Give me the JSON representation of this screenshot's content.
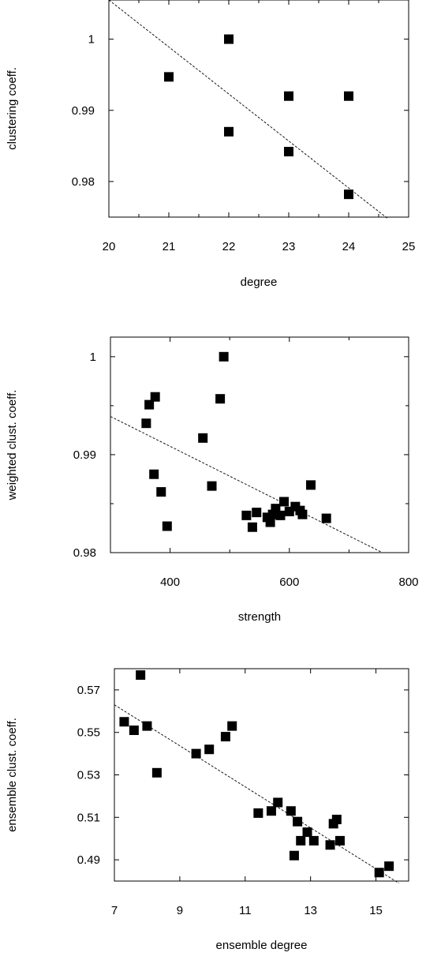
{
  "chart_data": [
    {
      "type": "scatter",
      "title": "",
      "xlabel": "degree",
      "ylabel": "clustering coeff.",
      "xlim": [
        20,
        25
      ],
      "ylim": [
        0.975,
        1.0055
      ],
      "xticks": [
        20,
        21,
        22,
        23,
        24,
        25
      ],
      "xtick_labels": [
        "20",
        "21",
        "22",
        "23",
        "24",
        "25"
      ],
      "yticks": [
        0.98,
        0.99,
        1.0
      ],
      "ytick_labels": [
        "0.98",
        "0.99",
        "1"
      ],
      "points": [
        {
          "x": 21,
          "y": 0.9947
        },
        {
          "x": 22,
          "y": 1.0
        },
        {
          "x": 22,
          "y": 0.987
        },
        {
          "x": 23,
          "y": 0.992
        },
        {
          "x": 23,
          "y": 0.9842
        },
        {
          "x": 24,
          "y": 0.992
        },
        {
          "x": 24,
          "y": 0.9782
        }
      ],
      "fit_line": {
        "x": [
          20,
          24.65
        ],
        "y": [
          1.0055,
          0.9748
        ]
      },
      "grid": false,
      "legend": "none"
    },
    {
      "type": "scatter",
      "title": "",
      "xlabel": "strength",
      "ylabel": "weighted clust. coeff.",
      "xlim": [
        300,
        800
      ],
      "ylim": [
        0.98,
        1.002
      ],
      "xticks": [
        400,
        600,
        800
      ],
      "xtick_labels": [
        "400",
        "600",
        "800"
      ],
      "yticks": [
        0.98,
        0.99,
        1.0
      ],
      "ytick_labels": [
        "0.98",
        "0.99",
        "1"
      ],
      "minor_yticks": [
        0.985,
        0.995
      ],
      "points": [
        {
          "x": 360,
          "y": 0.9932
        },
        {
          "x": 365,
          "y": 0.9951
        },
        {
          "x": 375,
          "y": 0.9959
        },
        {
          "x": 373,
          "y": 0.988
        },
        {
          "x": 385,
          "y": 0.9862
        },
        {
          "x": 395,
          "y": 0.9827
        },
        {
          "x": 455,
          "y": 0.9917
        },
        {
          "x": 470,
          "y": 0.9868
        },
        {
          "x": 484,
          "y": 0.9957
        },
        {
          "x": 490,
          "y": 1.0
        },
        {
          "x": 528,
          "y": 0.9838
        },
        {
          "x": 538,
          "y": 0.9826
        },
        {
          "x": 545,
          "y": 0.9841
        },
        {
          "x": 563,
          "y": 0.9836
        },
        {
          "x": 568,
          "y": 0.9831
        },
        {
          "x": 572,
          "y": 0.9839
        },
        {
          "x": 577,
          "y": 0.9845
        },
        {
          "x": 585,
          "y": 0.9838
        },
        {
          "x": 591,
          "y": 0.9852
        },
        {
          "x": 600,
          "y": 0.9842
        },
        {
          "x": 610,
          "y": 0.9847
        },
        {
          "x": 618,
          "y": 0.9843
        },
        {
          "x": 622,
          "y": 0.9839
        },
        {
          "x": 636,
          "y": 0.9869
        },
        {
          "x": 662,
          "y": 0.9835
        }
      ],
      "fit_line": {
        "x": [
          300,
          756
        ],
        "y": [
          0.9939,
          0.98
        ]
      },
      "grid": false,
      "legend": "none"
    },
    {
      "type": "scatter",
      "title": "",
      "xlabel": "ensemble degree",
      "ylabel": "ensemble clust. coeff.",
      "xlim": [
        7,
        16
      ],
      "ylim": [
        0.48,
        0.58
      ],
      "xticks": [
        7,
        9,
        11,
        13,
        15
      ],
      "xtick_labels": [
        "7",
        "9",
        "11",
        "13",
        "15"
      ],
      "yticks": [
        0.49,
        0.51,
        0.53,
        0.55,
        0.57
      ],
      "ytick_labels": [
        "0.49",
        "0.51",
        "0.53",
        "0.55",
        "0.57"
      ],
      "points": [
        {
          "x": 7.3,
          "y": 0.555
        },
        {
          "x": 7.6,
          "y": 0.551
        },
        {
          "x": 7.8,
          "y": 0.577
        },
        {
          "x": 8.0,
          "y": 0.553
        },
        {
          "x": 8.3,
          "y": 0.531
        },
        {
          "x": 9.5,
          "y": 0.54
        },
        {
          "x": 9.9,
          "y": 0.542
        },
        {
          "x": 10.4,
          "y": 0.548
        },
        {
          "x": 10.6,
          "y": 0.553
        },
        {
          "x": 11.4,
          "y": 0.512
        },
        {
          "x": 11.8,
          "y": 0.513
        },
        {
          "x": 12.0,
          "y": 0.517
        },
        {
          "x": 12.4,
          "y": 0.513
        },
        {
          "x": 12.5,
          "y": 0.492
        },
        {
          "x": 12.6,
          "y": 0.508
        },
        {
          "x": 12.7,
          "y": 0.499
        },
        {
          "x": 12.9,
          "y": 0.503
        },
        {
          "x": 13.1,
          "y": 0.499
        },
        {
          "x": 13.6,
          "y": 0.497
        },
        {
          "x": 13.7,
          "y": 0.507
        },
        {
          "x": 13.8,
          "y": 0.509
        },
        {
          "x": 13.9,
          "y": 0.499
        },
        {
          "x": 15.1,
          "y": 0.484
        },
        {
          "x": 15.4,
          "y": 0.487
        }
      ],
      "fit_line": {
        "x": [
          7,
          15.7
        ],
        "y": [
          0.563,
          0.479
        ]
      },
      "grid": false,
      "legend": "none"
    }
  ]
}
